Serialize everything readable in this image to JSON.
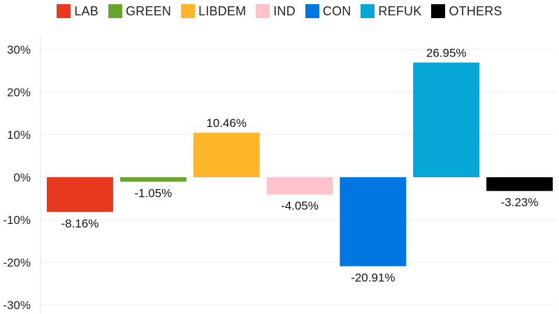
{
  "chart_data": {
    "type": "bar",
    "title": "",
    "xlabel": "",
    "ylabel": "",
    "categories": [
      "LAB",
      "GREEN",
      "LIBDEM",
      "IND",
      "CON",
      "REFUK",
      "OTHERS"
    ],
    "values": [
      -8.16,
      -1.05,
      10.46,
      -4.05,
      -20.91,
      26.95,
      -3.23
    ],
    "data_labels": [
      "-8.16%",
      "-1.05%",
      "10.46%",
      "-4.05%",
      "-20.91%",
      "26.95%",
      "-3.23%"
    ],
    "colors": [
      "#e8381f",
      "#6aa42e",
      "#fdb52a",
      "#ffc2cb",
      "#0077e0",
      "#06a6d6",
      "#000000"
    ],
    "ylim": [
      -30,
      30
    ],
    "yticks": [
      30,
      20,
      10,
      0,
      -10,
      -20,
      -30
    ],
    "ytick_labels": [
      "30%",
      "20%",
      "10%",
      "0%",
      "-10%",
      "-20%",
      "-30%"
    ],
    "grid": true,
    "legend_position": "top-center"
  }
}
